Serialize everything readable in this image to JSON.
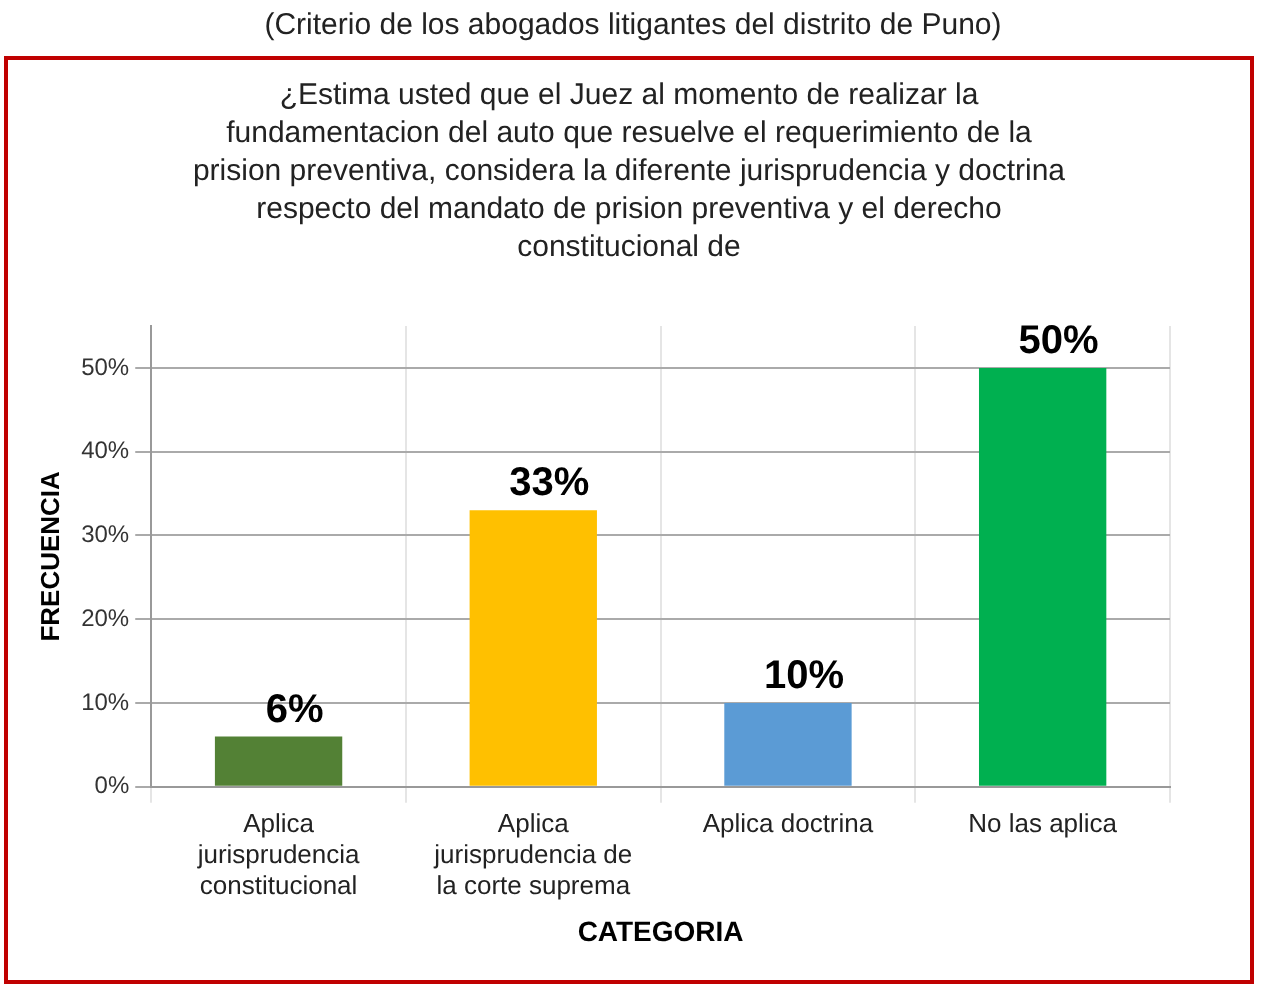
{
  "chart_data": {
    "type": "bar",
    "subtitle": "(Criterio de los abogados litigantes del distrito de Puno)",
    "title": "¿Estima usted que el Juez al momento de realizar la fundamentacion del auto que resuelve el requerimiento de la prision preventiva, considera la diferente jurisprudencia y doctrina respecto del mandato de prision preventiva y el derecho constitucional de",
    "categories": [
      "Aplica jurisprudencia constitucional",
      "Aplica jurisprudencia de la corte suprema",
      "Aplica doctrina",
      "No las aplica"
    ],
    "values": [
      6,
      33,
      10,
      50
    ],
    "colors": [
      "#538135",
      "#ffc000",
      "#5b9bd5",
      "#00b050"
    ],
    "value_labels": [
      "6%",
      "33%",
      "10%",
      "50%"
    ],
    "xlabel": "CATEGORIA",
    "ylabel": "FRECUENCIA",
    "ylim": [
      0,
      55
    ],
    "yticks": [
      {
        "value": 0,
        "label": "0%"
      },
      {
        "value": 10,
        "label": "10%"
      },
      {
        "value": 20,
        "label": "20%"
      },
      {
        "value": 30,
        "label": "30%"
      },
      {
        "value": 40,
        "label": "40%"
      },
      {
        "value": 50,
        "label": "50%"
      }
    ],
    "grid": true,
    "legend": false
  }
}
